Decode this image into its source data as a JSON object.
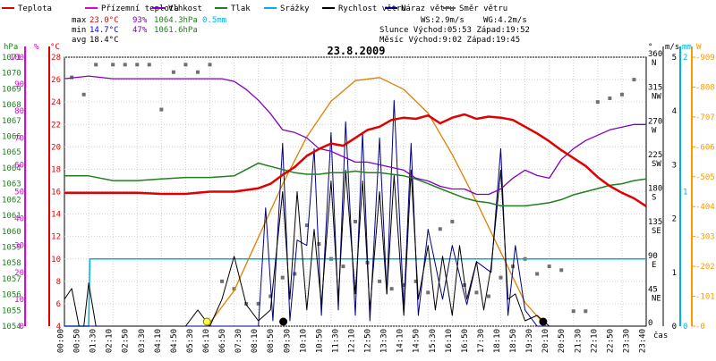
{
  "chart_data": {
    "type": "line",
    "title": "23.8.2009",
    "legend": [
      {
        "name": "Teplota",
        "color": "#e00000"
      },
      {
        "name": "Přízemní teplota",
        "color": "#e000e0"
      },
      {
        "name": "Vlhkost",
        "color": "#8000c0"
      },
      {
        "name": "Tlak",
        "color": "#208020"
      },
      {
        "name": "Srážky",
        "color": "#00b0e0"
      },
      {
        "name": "Rychlost větru",
        "color": "#000000"
      },
      {
        "name": "Náraz větru",
        "color": "#000080"
      },
      {
        "name": "Směr větru",
        "color": "#606060"
      }
    ],
    "stats": {
      "max_label": "max",
      "max_temp": "23.0°C",
      "max_hum": "93%",
      "max_press": "1064.3hPa",
      "max_rain": "0.5mm",
      "min_label": "min",
      "min_temp": "14.7°C",
      "min_hum": "47%",
      "min_press": "1061.6hPa",
      "avg_label": "avg",
      "avg_temp": "18.4°C",
      "ws": "WS:2.9m/s",
      "wg": "WG:4.2m/s",
      "sun": "Slunce Východ:05:53  Západ:19:52",
      "moon": "Měsíc  Východ:9:02   Západ:19:45"
    },
    "axis_units": {
      "hpa": "hPa",
      "pct": "%",
      "degc": "°C",
      "deg": "°",
      "ms": "m/s",
      "mm": "mm",
      "w": "W",
      "time": "čas"
    },
    "pressure_ticks": [
      1054,
      1055,
      1056,
      1057,
      1058,
      1059,
      1060,
      1061,
      1062,
      1063,
      1064,
      1065,
      1066,
      1067,
      1068,
      1069,
      1070,
      1071
    ],
    "humidity_ticks": [
      0,
      10,
      20,
      30,
      40,
      50,
      60,
      70,
      80,
      90,
      100
    ],
    "temp_ticks": [
      28,
      26,
      24,
      22,
      20,
      18,
      16,
      14,
      12,
      10,
      8,
      6,
      4
    ],
    "dir_ticks": [
      {
        "v": 360,
        "l": "360",
        "c": "N"
      },
      {
        "v": 315,
        "l": "315",
        "c": "NW"
      },
      {
        "v": 270,
        "l": "270",
        "c": "W"
      },
      {
        "v": 225,
        "l": "225",
        "c": "SW"
      },
      {
        "v": 180,
        "l": "180",
        "c": "S"
      },
      {
        "v": 135,
        "l": "135",
        "c": "SE"
      },
      {
        "v": 90,
        "l": "90",
        "c": "E"
      },
      {
        "v": 45,
        "l": "45",
        "c": "NE"
      },
      {
        "v": 0,
        "l": "0",
        "c": ""
      }
    ],
    "ms_ticks": [
      0,
      1,
      2,
      3,
      4,
      5
    ],
    "mm_ticks": [
      0,
      1,
      2
    ],
    "solar_ticks": [
      0,
      101,
      202,
      303,
      404,
      505,
      606,
      707,
      808,
      909
    ],
    "x_ticks": [
      "00:00",
      "00:50",
      "01:30",
      "02:10",
      "02:50",
      "03:30",
      "04:10",
      "04:50",
      "05:30",
      "06:10",
      "06:50",
      "07:30",
      "08:10",
      "08:50",
      "09:30",
      "10:10",
      "10:50",
      "11:30",
      "12:10",
      "12:50",
      "13:30",
      "14:10",
      "14:50",
      "15:30",
      "16:10",
      "16:50",
      "17:30",
      "18:10",
      "18:50",
      "19:30",
      "20:10",
      "20:50",
      "21:30",
      "22:10",
      "22:50",
      "23:30",
      "23:40"
    ],
    "temperature": {
      "x": [
        0,
        1,
        2,
        3,
        4,
        5,
        6,
        7,
        8,
        8.5,
        9,
        9.5,
        10,
        10.5,
        11,
        11.5,
        12,
        12.5,
        13,
        13.5,
        14,
        14.5,
        15,
        15.5,
        16,
        16.5,
        17,
        17.5,
        18,
        18.5,
        19,
        19.5,
        20,
        20.5,
        21,
        21.5,
        22,
        22.5,
        23,
        23.5,
        24
      ],
      "y": [
        15.9,
        15.9,
        15.9,
        15.9,
        15.8,
        15.8,
        16.0,
        16.0,
        16.3,
        16.7,
        17.5,
        18.2,
        19.2,
        19.8,
        20.3,
        20.1,
        20.8,
        21.5,
        21.8,
        22.4,
        22.6,
        22.5,
        22.8,
        22.1,
        22.6,
        22.9,
        22.5,
        22.7,
        22.6,
        22.4,
        21.8,
        21.2,
        20.5,
        19.7,
        19.0,
        18.3,
        17.3,
        16.5,
        15.9,
        15.4,
        14.7
      ]
    },
    "humidity": {
      "x": [
        0,
        1,
        2,
        3,
        4,
        5,
        6,
        6.5,
        7,
        7.5,
        8,
        8.5,
        9,
        9.5,
        10,
        10.5,
        11,
        11.5,
        12,
        12.5,
        13,
        13.5,
        14,
        14.5,
        15,
        15.5,
        16,
        16.5,
        17,
        17.5,
        18,
        18.5,
        19,
        19.5,
        20,
        20.5,
        21,
        21.5,
        22,
        22.5,
        23,
        23.5,
        24
      ],
      "y": [
        92,
        93,
        92,
        92,
        92,
        92,
        92,
        92,
        91,
        88,
        84,
        79,
        73,
        72,
        70,
        66,
        65,
        63,
        61,
        61,
        60,
        59,
        58,
        55,
        54,
        52,
        51,
        51,
        49,
        49,
        51,
        55,
        58,
        56,
        55,
        62,
        66,
        69,
        71,
        73,
        74,
        75,
        75
      ]
    },
    "pressure": {
      "x": [
        0,
        1,
        2,
        3,
        4,
        5,
        6,
        7,
        8,
        8.5,
        9,
        9.5,
        10,
        10.5,
        11,
        11.5,
        12,
        12.5,
        13,
        13.5,
        14,
        14.5,
        15,
        15.5,
        16,
        16.5,
        17,
        17.5,
        18,
        18.5,
        19,
        19.5,
        20,
        20.5,
        21,
        21.5,
        22,
        22.5,
        23,
        23.5,
        24
      ],
      "y": [
        1063.5,
        1063.5,
        1063.2,
        1063.2,
        1063.3,
        1063.4,
        1063.4,
        1063.5,
        1064.3,
        1064.1,
        1063.9,
        1063.7,
        1063.6,
        1063.6,
        1063.7,
        1063.7,
        1063.8,
        1063.7,
        1063.7,
        1063.6,
        1063.5,
        1063.3,
        1063.0,
        1062.7,
        1062.4,
        1062.1,
        1061.9,
        1061.8,
        1061.6,
        1061.6,
        1061.6,
        1061.7,
        1061.8,
        1062.0,
        1062.3,
        1062.5,
        1062.7,
        1062.9,
        1063.0,
        1063.2,
        1063.3
      ]
    },
    "rain": {
      "x": [
        0,
        1,
        1.05,
        24
      ],
      "y": [
        0,
        0,
        0.5,
        0.5
      ]
    },
    "wind_speed": {
      "x": [
        0,
        0.3,
        0.6,
        0.8,
        1,
        1.3,
        5,
        5.5,
        6,
        6.5,
        7,
        7.5,
        8,
        8.5,
        9,
        9.3,
        9.6,
        10,
        10.3,
        10.6,
        11,
        11.3,
        11.6,
        12,
        12.3,
        12.6,
        13,
        13.3,
        13.6,
        14,
        14.3,
        14.6,
        15,
        15.3,
        15.6,
        16,
        16.3,
        16.6,
        17,
        17.3,
        17.6,
        18,
        18.3,
        18.6,
        19,
        19.5,
        20,
        24
      ],
      "y": [
        0.5,
        0.7,
        0,
        0,
        0.8,
        0,
        0,
        0.3,
        0,
        0.5,
        1.3,
        0.4,
        0.1,
        0.3,
        2.5,
        0.5,
        2.5,
        0.3,
        1.8,
        0.4,
        2.7,
        0.5,
        2.9,
        0.6,
        2.7,
        0.3,
        2.5,
        0.6,
        2.8,
        0.2,
        2.9,
        0.5,
        1.5,
        0.3,
        1.3,
        0.2,
        1.5,
        0.5,
        1.2,
        0.3,
        1.1,
        2.9,
        0.5,
        0.6,
        0.1,
        0.2,
        0,
        0
      ]
    },
    "wind_gust": {
      "x": [
        0,
        8,
        8.3,
        8.6,
        9,
        9.3,
        9.6,
        10,
        10.3,
        10.6,
        11,
        11.3,
        11.6,
        12,
        12.3,
        12.6,
        13,
        13.3,
        13.6,
        14,
        14.3,
        14.6,
        15,
        15.6,
        16,
        16.6,
        17,
        17.6,
        18,
        18.3,
        18.6,
        19,
        19.5,
        24
      ],
      "y": [
        0,
        0,
        2.2,
        0.1,
        3.4,
        0.1,
        1.6,
        1.5,
        3.3,
        0.2,
        3.6,
        0.3,
        3.8,
        0.2,
        3.6,
        0.1,
        3.5,
        0.6,
        4.2,
        0.3,
        3.4,
        0.2,
        1.8,
        0.5,
        1.5,
        0.4,
        1.2,
        1.0,
        3.3,
        0.2,
        1.5,
        0.3,
        0,
        0
      ]
    },
    "solar": {
      "x": [
        5.9,
        7,
        8,
        9,
        10,
        11,
        12,
        13,
        14,
        15,
        16,
        17,
        18,
        19,
        19.87
      ],
      "y": [
        0,
        120,
        300,
        480,
        640,
        760,
        830,
        840,
        800,
        720,
        580,
        420,
        250,
        80,
        0
      ]
    },
    "wind_dir": {
      "x": [
        0.3,
        0.8,
        1.3,
        2,
        2.5,
        3,
        3.5,
        4,
        4.5,
        5,
        5.5,
        6,
        6.5,
        7,
        7.5,
        8,
        8.5,
        9,
        9.5,
        10,
        10.5,
        11,
        11.5,
        12,
        12.5,
        13,
        13.5,
        14,
        14.5,
        15,
        15.5,
        16,
        16.5,
        17,
        17.5,
        18,
        18.5,
        19,
        19.5,
        20,
        20.5,
        21,
        21.5,
        22,
        22.5,
        23,
        23.5
      ],
      "y": [
        333,
        310,
        350,
        350,
        350,
        350,
        350,
        290,
        340,
        350,
        340,
        350,
        60,
        50,
        30,
        30,
        40,
        65,
        70,
        135,
        110,
        90,
        80,
        140,
        85,
        60,
        50,
        55,
        60,
        45,
        130,
        140,
        55,
        45,
        40,
        65,
        80,
        90,
        70,
        80,
        75,
        20,
        20,
        300,
        305,
        310,
        330
      ]
    },
    "ranges": {
      "temp": [
        4,
        28
      ],
      "humidity": [
        0,
        100
      ],
      "pressure": [
        1054,
        1071
      ],
      "dir": [
        0,
        360
      ],
      "ms": [
        0,
        5
      ],
      "mm": [
        0,
        2
      ],
      "solar": [
        0,
        909
      ],
      "hours": [
        0,
        24
      ]
    }
  }
}
